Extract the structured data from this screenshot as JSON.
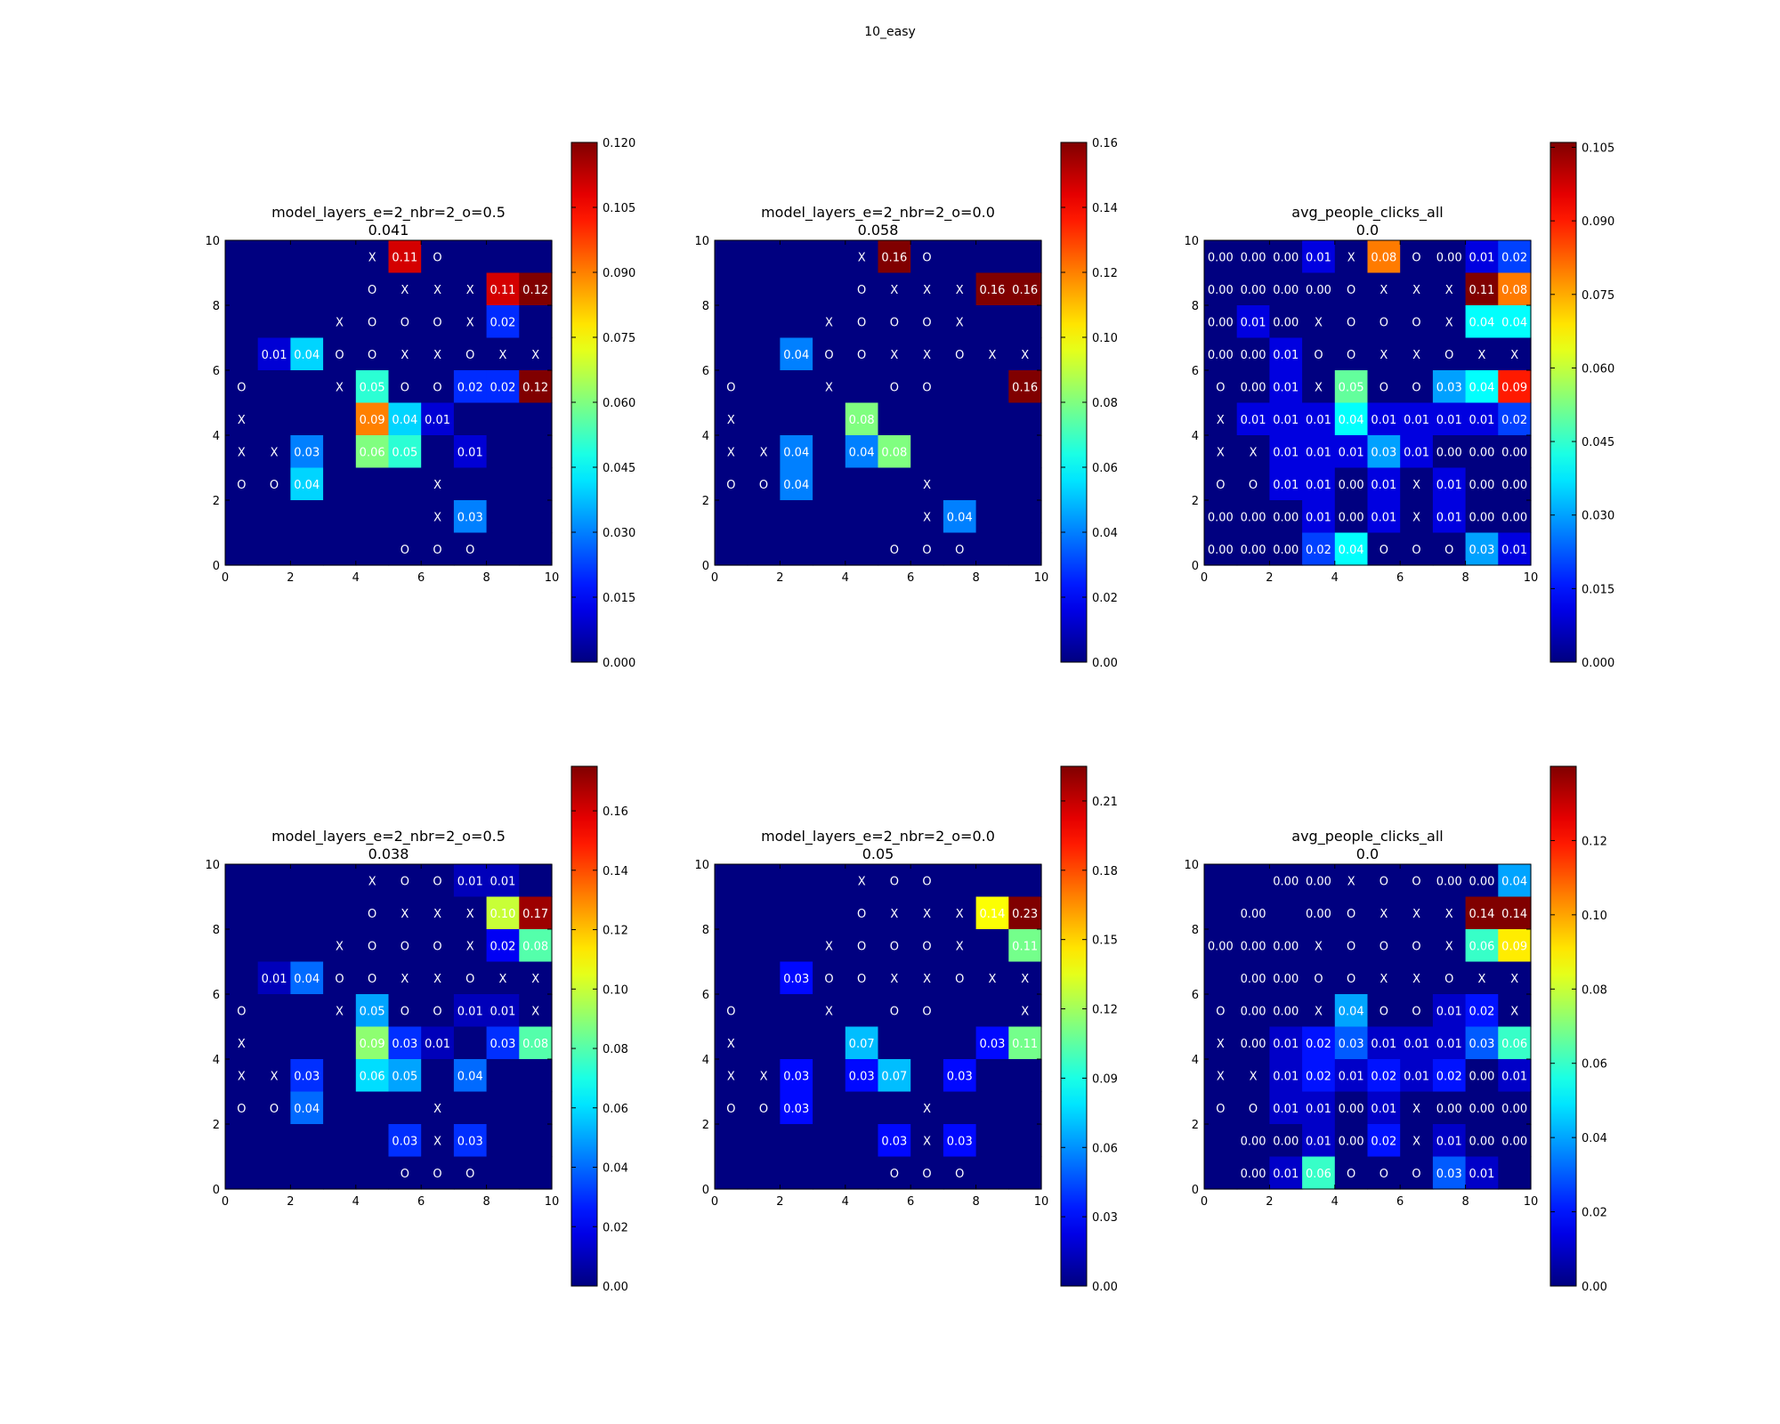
{
  "figure": {
    "suptitle": "10_easy"
  },
  "chart_data": [
    {
      "type": "heatmap",
      "title": "model_layers_e=2_nbr=2_o=0.5",
      "subtitle": "0.041",
      "xlim": [
        0,
        10
      ],
      "ylim": [
        0,
        10
      ],
      "xticks": [
        "0",
        "2",
        "4",
        "6",
        "8",
        "10"
      ],
      "yticks": [
        "0",
        "2",
        "4",
        "6",
        "8",
        "10"
      ],
      "colorbar": {
        "min": 0.0,
        "max": 0.12,
        "ticks": [
          "0.000",
          "0.015",
          "0.030",
          "0.045",
          "0.060",
          "0.075",
          "0.090",
          "0.105",
          "0.120"
        ]
      },
      "grid": [
        [
          "",
          "",
          "",
          "",
          "X",
          "0.11",
          "O",
          "",
          "",
          ""
        ],
        [
          "",
          "",
          "",
          "",
          "O",
          "X",
          "X",
          "X",
          "0.11",
          "0.12"
        ],
        [
          "",
          "",
          "",
          "X",
          "O",
          "O",
          "O",
          "X",
          "0.02",
          ""
        ],
        [
          "",
          "0.01",
          "0.04",
          "O",
          "O",
          "X",
          "X",
          "O",
          "X",
          "X"
        ],
        [
          "O",
          "",
          "",
          "X",
          "0.05",
          "O",
          "O",
          "0.02",
          "0.02",
          "0.12"
        ],
        [
          "X",
          "",
          "",
          "",
          "0.09",
          "0.04",
          "0.01",
          "",
          "",
          ""
        ],
        [
          "X",
          "X",
          "0.03",
          "",
          "0.06",
          "0.05",
          "",
          "0.01",
          "",
          ""
        ],
        [
          "O",
          "O",
          "0.04",
          "",
          "",
          "",
          "X",
          "",
          "",
          ""
        ],
        [
          "",
          "",
          "",
          "",
          "",
          "",
          "X",
          "0.03",
          "",
          ""
        ],
        [
          "",
          "",
          "",
          "",
          "",
          "O",
          "O",
          "O",
          "",
          ""
        ]
      ]
    },
    {
      "type": "heatmap",
      "title": "model_layers_e=2_nbr=2_o=0.0",
      "subtitle": "0.058",
      "xlim": [
        0,
        10
      ],
      "ylim": [
        0,
        10
      ],
      "xticks": [
        "0",
        "2",
        "4",
        "6",
        "8",
        "10"
      ],
      "yticks": [
        "0",
        "2",
        "4",
        "6",
        "8",
        "10"
      ],
      "colorbar": {
        "min": 0.0,
        "max": 0.16,
        "ticks": [
          "0.00",
          "0.02",
          "0.04",
          "0.06",
          "0.08",
          "0.10",
          "0.12",
          "0.14",
          "0.16"
        ]
      },
      "grid": [
        [
          "",
          "",
          "",
          "",
          "X",
          "0.16",
          "O",
          "",
          "",
          ""
        ],
        [
          "",
          "",
          "",
          "",
          "O",
          "X",
          "X",
          "X",
          "0.16",
          "0.16"
        ],
        [
          "",
          "",
          "",
          "X",
          "O",
          "O",
          "O",
          "X",
          "",
          ""
        ],
        [
          "",
          "",
          "0.04",
          "O",
          "O",
          "X",
          "X",
          "O",
          "X",
          "X"
        ],
        [
          "O",
          "",
          "",
          "X",
          "",
          "O",
          "O",
          "",
          "",
          "0.16"
        ],
        [
          "X",
          "",
          "",
          "",
          "0.08",
          "",
          "",
          "",
          "",
          ""
        ],
        [
          "X",
          "X",
          "0.04",
          "",
          "0.04",
          "0.08",
          "",
          "",
          "",
          ""
        ],
        [
          "O",
          "O",
          "0.04",
          "",
          "",
          "",
          "X",
          "",
          "",
          ""
        ],
        [
          "",
          "",
          "",
          "",
          "",
          "",
          "X",
          "0.04",
          "",
          ""
        ],
        [
          "",
          "",
          "",
          "",
          "",
          "O",
          "O",
          "O",
          "",
          ""
        ]
      ]
    },
    {
      "type": "heatmap",
      "title": "avg_people_clicks_all",
      "subtitle": "0.0",
      "xlim": [
        0,
        10
      ],
      "ylim": [
        0,
        10
      ],
      "xticks": [
        "0",
        "2",
        "4",
        "6",
        "8",
        "10"
      ],
      "yticks": [
        "0",
        "2",
        "4",
        "6",
        "8",
        "10"
      ],
      "colorbar": {
        "min": 0.0,
        "max": 0.106,
        "ticks": [
          "0.000",
          "0.015",
          "0.030",
          "0.045",
          "0.060",
          "0.075",
          "0.090",
          "0.105"
        ]
      },
      "grid": [
        [
          "0.00",
          "0.00",
          "0.00",
          "0.01",
          "X",
          "0.08",
          "O",
          "0.00",
          "0.01",
          "0.02"
        ],
        [
          "0.00",
          "0.00",
          "0.00",
          "0.00",
          "O",
          "X",
          "X",
          "X",
          "0.11",
          "0.08"
        ],
        [
          "0.00",
          "0.01",
          "0.00",
          "X",
          "O",
          "O",
          "O",
          "X",
          "0.04",
          "0.04"
        ],
        [
          "0.00",
          "0.00",
          "0.01",
          "O",
          "O",
          "X",
          "X",
          "O",
          "X",
          "X"
        ],
        [
          "O",
          "0.00",
          "0.01",
          "X",
          "0.05",
          "O",
          "O",
          "0.03",
          "0.04",
          "0.09"
        ],
        [
          "X",
          "0.01",
          "0.01",
          "0.01",
          "0.04",
          "0.01",
          "0.01",
          "0.01",
          "0.01",
          "0.02"
        ],
        [
          "X",
          "X",
          "0.01",
          "0.01",
          "0.01",
          "0.03",
          "0.01",
          "0.00",
          "0.00",
          "0.00"
        ],
        [
          "O",
          "O",
          "0.01",
          "0.01",
          "0.00",
          "0.01",
          "X",
          "0.01",
          "0.00",
          "0.00"
        ],
        [
          "0.00",
          "0.00",
          "0.00",
          "0.01",
          "0.00",
          "0.01",
          "X",
          "0.01",
          "0.00",
          "0.00"
        ],
        [
          "0.00",
          "0.00",
          "0.00",
          "0.02",
          "0.04",
          "O",
          "O",
          "O",
          "0.03",
          "0.01"
        ]
      ]
    },
    {
      "type": "heatmap",
      "title": "model_layers_e=2_nbr=2_o=0.5",
      "subtitle": "0.038",
      "xlim": [
        0,
        10
      ],
      "ylim": [
        0,
        10
      ],
      "xticks": [
        "0",
        "2",
        "4",
        "6",
        "8",
        "10"
      ],
      "yticks": [
        "0",
        "2",
        "4",
        "6",
        "8",
        "10"
      ],
      "colorbar": {
        "min": 0.0,
        "max": 0.175,
        "ticks": [
          "0.00",
          "0.02",
          "0.04",
          "0.06",
          "0.08",
          "0.10",
          "0.12",
          "0.14",
          "0.16"
        ]
      },
      "grid": [
        [
          "",
          "",
          "",
          "",
          "X",
          "O",
          "O",
          "0.01",
          "0.01",
          ""
        ],
        [
          "",
          "",
          "",
          "",
          "O",
          "X",
          "X",
          "X",
          "0.10",
          "0.17"
        ],
        [
          "",
          "",
          "",
          "X",
          "O",
          "O",
          "O",
          "X",
          "0.02",
          "0.08"
        ],
        [
          "",
          "0.01",
          "0.04",
          "O",
          "O",
          "X",
          "X",
          "O",
          "X",
          "X"
        ],
        [
          "O",
          "",
          "",
          "X",
          "0.05",
          "O",
          "O",
          "0.01",
          "0.01",
          "X"
        ],
        [
          "X",
          "",
          "",
          "",
          "0.09",
          "0.03",
          "0.01",
          "",
          "0.03",
          "0.08"
        ],
        [
          "X",
          "X",
          "0.03",
          "",
          "0.06",
          "0.05",
          "",
          "0.04",
          "",
          ""
        ],
        [
          "O",
          "O",
          "0.04",
          "",
          "",
          "",
          "X",
          "",
          "",
          ""
        ],
        [
          "",
          "",
          "",
          "",
          "",
          "0.03",
          "X",
          "0.03",
          "",
          ""
        ],
        [
          "",
          "",
          "",
          "",
          "",
          "O",
          "O",
          "O",
          "",
          ""
        ]
      ]
    },
    {
      "type": "heatmap",
      "title": "model_layers_e=2_nbr=2_o=0.0",
      "subtitle": "0.05",
      "xlim": [
        0,
        10
      ],
      "ylim": [
        0,
        10
      ],
      "xticks": [
        "0",
        "2",
        "4",
        "6",
        "8",
        "10"
      ],
      "yticks": [
        "0",
        "2",
        "4",
        "6",
        "8",
        "10"
      ],
      "colorbar": {
        "min": 0.0,
        "max": 0.225,
        "ticks": [
          "0.00",
          "0.03",
          "0.06",
          "0.09",
          "0.12",
          "0.15",
          "0.18",
          "0.21"
        ]
      },
      "grid": [
        [
          "",
          "",
          "",
          "",
          "X",
          "O",
          "O",
          "",
          "",
          ""
        ],
        [
          "",
          "",
          "",
          "",
          "O",
          "X",
          "X",
          "X",
          "0.14",
          "0.23"
        ],
        [
          "",
          "",
          "",
          "X",
          "O",
          "O",
          "O",
          "X",
          "",
          "0.11"
        ],
        [
          "",
          "",
          "0.03",
          "O",
          "O",
          "X",
          "X",
          "O",
          "X",
          "X"
        ],
        [
          "O",
          "",
          "",
          "X",
          "",
          "O",
          "O",
          "",
          "",
          "X"
        ],
        [
          "X",
          "",
          "",
          "",
          "0.07",
          "",
          "",
          "",
          "0.03",
          "0.11"
        ],
        [
          "X",
          "X",
          "0.03",
          "",
          "0.03",
          "0.07",
          "",
          "0.03",
          "",
          ""
        ],
        [
          "O",
          "O",
          "0.03",
          "",
          "",
          "",
          "X",
          "",
          "",
          ""
        ],
        [
          "",
          "",
          "",
          "",
          "",
          "0.03",
          "X",
          "0.03",
          "",
          ""
        ],
        [
          "",
          "",
          "",
          "",
          "",
          "O",
          "O",
          "O",
          "",
          ""
        ]
      ]
    },
    {
      "type": "heatmap",
      "title": "avg_people_clicks_all",
      "subtitle": "0.0",
      "xlim": [
        0,
        10
      ],
      "ylim": [
        0,
        10
      ],
      "xticks": [
        "0",
        "2",
        "4",
        "6",
        "8",
        "10"
      ],
      "yticks": [
        "0",
        "2",
        "4",
        "6",
        "8",
        "10"
      ],
      "colorbar": {
        "min": 0.0,
        "max": 0.14,
        "ticks": [
          "0.00",
          "0.02",
          "0.04",
          "0.06",
          "0.08",
          "0.10",
          "0.12"
        ]
      },
      "grid": [
        [
          "",
          "",
          "0.00",
          "0.00",
          "X",
          "O",
          "O",
          "0.00",
          "0.00",
          "0.04"
        ],
        [
          "",
          "0.00",
          "",
          "0.00",
          "O",
          "X",
          "X",
          "X",
          "0.14",
          "0.14"
        ],
        [
          "0.00",
          "0.00",
          "0.00",
          "X",
          "O",
          "O",
          "O",
          "X",
          "0.06",
          "0.09"
        ],
        [
          "",
          "0.00",
          "0.00",
          "O",
          "O",
          "X",
          "X",
          "O",
          "X",
          "X"
        ],
        [
          "O",
          "0.00",
          "0.00",
          "X",
          "0.04",
          "O",
          "O",
          "0.01",
          "0.02",
          "X"
        ],
        [
          "X",
          "0.00",
          "0.01",
          "0.02",
          "0.03",
          "0.01",
          "0.01",
          "0.01",
          "0.03",
          "0.06"
        ],
        [
          "X",
          "X",
          "0.01",
          "0.02",
          "0.01",
          "0.02",
          "0.01",
          "0.02",
          "0.00",
          "0.01"
        ],
        [
          "O",
          "O",
          "0.01",
          "0.01",
          "0.00",
          "0.01",
          "X",
          "0.00",
          "0.00",
          "0.00"
        ],
        [
          "",
          "0.00",
          "0.00",
          "0.01",
          "0.00",
          "0.02",
          "X",
          "0.01",
          "0.00",
          "0.00"
        ],
        [
          "",
          "0.00",
          "0.01",
          "0.06",
          "O",
          "O",
          "O",
          "0.03",
          "0.01",
          ""
        ]
      ]
    }
  ]
}
